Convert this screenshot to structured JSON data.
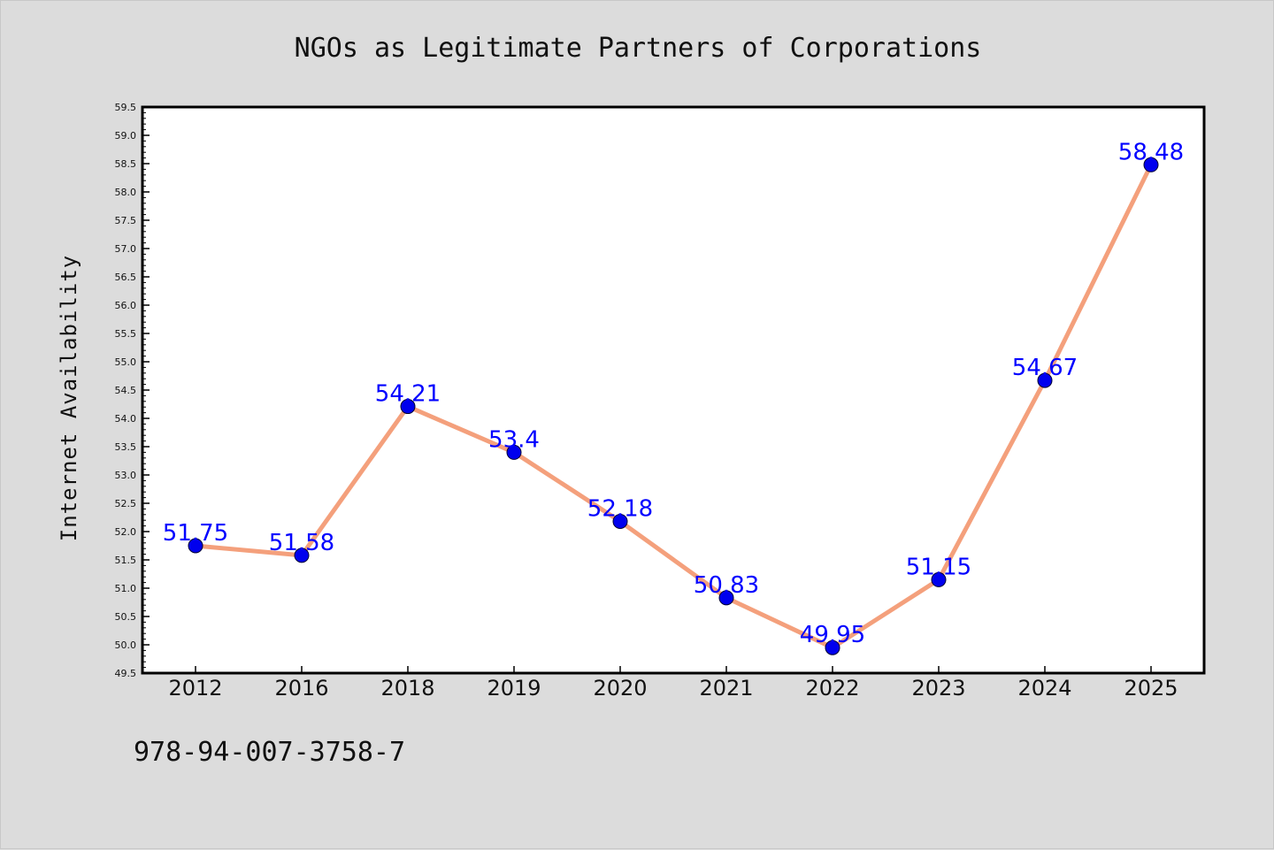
{
  "chart_data": {
    "type": "line",
    "title": "NGOs as Legitimate Partners of Corporations",
    "xlabel": "",
    "ylabel": "Internet Availability",
    "categories": [
      "2012",
      "2016",
      "2018",
      "2019",
      "2020",
      "2021",
      "2022",
      "2023",
      "2024",
      "2025"
    ],
    "series": [
      {
        "values": [
          51.75,
          51.58,
          54.21,
          53.4,
          52.18,
          50.83,
          49.95,
          51.15,
          54.67,
          58.48
        ],
        "labels": [
          "51.75",
          "51.58",
          "54.21",
          "53.4",
          "52.18",
          "50.83",
          "49.95",
          "51.15",
          "54.67",
          "58.48"
        ],
        "line_color": "#f4a07c",
        "marker_color": "#0000ee",
        "label_color": "#0000ff"
      }
    ],
    "ylim": [
      49.5,
      59.5
    ],
    "ytick_step": 0.5,
    "grid": false,
    "legend": "none"
  },
  "footer_text": "978-94-007-3758-7",
  "colors": {
    "background": "#dcdcdc",
    "plot_background": "#ffffff",
    "frame": "#000000"
  }
}
